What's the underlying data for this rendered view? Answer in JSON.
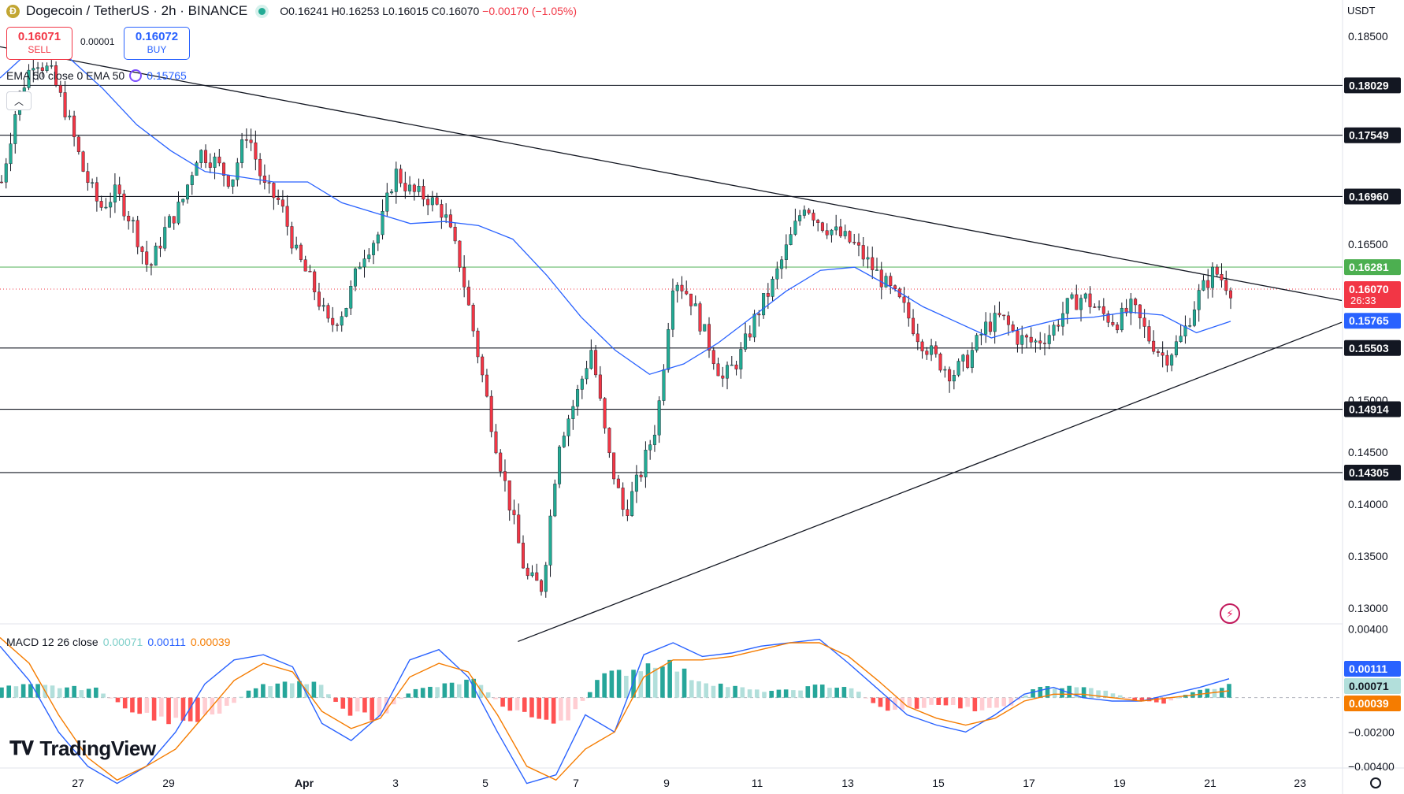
{
  "header": {
    "symbol": "Dogecoin / TetherUS · 2h · BINANCE",
    "coin_icon": "dogecoin-coin-icon",
    "open": "O0.16241",
    "high": "H0.16253",
    "low": "L0.16015",
    "close": "C0.16070",
    "change": "−0.00170 (−1.05%)"
  },
  "trade": {
    "sell_price": "0.16071",
    "sell_label": "SELL",
    "buy_price": "0.16072",
    "buy_label": "BUY",
    "spread": "0.00001"
  },
  "ema": {
    "label": "EMA 50 close 0 EMA 50",
    "value": "0.15765"
  },
  "macd": {
    "label": "MACD 12 26 close",
    "hist": "0.00071",
    "macd": "0.00111",
    "signal": "0.00039"
  },
  "currency": "USDT",
  "branding": {
    "logo_text": "TradingView"
  },
  "colors": {
    "up": "#22ab94",
    "down": "#f23645",
    "ema": "#2962ff",
    "signal": "#f57c00",
    "level_green": "#4caf50"
  },
  "chart_data": {
    "type": "candlestick",
    "price_axis_ticks": [
      "0.18500",
      "0.16500",
      "0.15000",
      "0.14500",
      "0.14000",
      "0.13500",
      "0.13000"
    ],
    "x_ticks": [
      "27",
      "29",
      "Apr",
      "3",
      "5",
      "7",
      "9",
      "11",
      "13",
      "15",
      "17",
      "19",
      "21",
      "23"
    ],
    "ylim": [
      0.1285,
      0.1885
    ],
    "horizontal_levels": [
      {
        "value": 0.18029,
        "label": "0.18029"
      },
      {
        "value": 0.17549,
        "label": "0.17549"
      },
      {
        "value": 0.1696,
        "label": "0.16960"
      },
      {
        "value": 0.16281,
        "label": "0.16281",
        "color": "green"
      },
      {
        "value": 0.15503,
        "label": "0.15503"
      },
      {
        "value": 0.14914,
        "label": "0.14914"
      },
      {
        "value": 0.14305,
        "label": "0.14305"
      }
    ],
    "current_price": {
      "value": 0.1607,
      "label": "0.16070",
      "countdown": "26:33"
    },
    "ema_value": {
      "value": 0.15765,
      "label": "0.15765"
    },
    "price_path": [
      0.171,
      0.179,
      0.183,
      0.1815,
      0.1775,
      0.172,
      0.1685,
      0.17,
      0.167,
      0.1625,
      0.1665,
      0.169,
      0.174,
      0.173,
      0.171,
      0.176,
      0.1705,
      0.169,
      0.164,
      0.161,
      0.157,
      0.159,
      0.164,
      0.166,
      0.172,
      0.17,
      0.1695,
      0.168,
      0.163,
      0.155,
      0.147,
      0.14,
      0.133,
      0.132,
      0.146,
      0.15,
      0.155,
      0.145,
      0.139,
      0.143,
      0.148,
      0.162,
      0.16,
      0.156,
      0.152,
      0.154,
      0.158,
      0.161,
      0.165,
      0.169,
      0.167,
      0.166,
      0.165,
      0.163,
      0.161,
      0.159,
      0.156,
      0.154,
      0.1525,
      0.154,
      0.157,
      0.158,
      0.156,
      0.1555,
      0.1565,
      0.159,
      0.16,
      0.1585,
      0.1575,
      0.159,
      0.156,
      0.154,
      0.156,
      0.16,
      0.1625,
      0.1607
    ],
    "ema_path": [
      0.181,
      0.184,
      0.183,
      0.18,
      0.1765,
      0.174,
      0.172,
      0.1715,
      0.171,
      0.171,
      0.169,
      0.168,
      0.167,
      0.1672,
      0.1668,
      0.1655,
      0.162,
      0.158,
      0.1548,
      0.1525,
      0.1535,
      0.1555,
      0.158,
      0.1605,
      0.1625,
      0.1628,
      0.161,
      0.159,
      0.1575,
      0.156,
      0.157,
      0.1578,
      0.158,
      0.1585,
      0.1582,
      0.1565,
      0.1576
    ],
    "resistance_trendline": [
      [
        0.0,
        0.184
      ],
      [
        0.276,
        0.1803
      ],
      [
        0.636,
        0.1698
      ],
      [
        1.0,
        0.1596
      ]
    ],
    "support_trendline": [
      [
        0.386,
        0.1268
      ],
      [
        0.418,
        0.1303
      ],
      [
        1.0,
        0.1575
      ]
    ],
    "macd_axis_ticks": [
      "0.00400",
      "−0.00200",
      "−0.00400"
    ],
    "macd_ylim": [
      -0.0041,
      0.0043
    ],
    "macd_line": [
      0.003,
      0.001,
      -0.002,
      -0.004,
      -0.005,
      -0.004,
      -0.002,
      0.0008,
      0.0022,
      0.0025,
      0.0018,
      -0.0015,
      -0.0025,
      -0.001,
      0.0022,
      0.0028,
      0.0012,
      -0.002,
      -0.005,
      -0.0045,
      -0.001,
      -0.002,
      0.0025,
      0.0032,
      0.0024,
      0.0026,
      0.003,
      0.0032,
      0.0034,
      0.002,
      0.0005,
      -0.001,
      -0.0016,
      -0.002,
      -0.001,
      0.0002,
      0.0006,
      0.0,
      -0.0002,
      -0.0002,
      0.0002,
      0.0006,
      0.0011
    ],
    "signal_line": [
      0.0035,
      0.002,
      -0.001,
      -0.0035,
      -0.0048,
      -0.004,
      -0.003,
      -0.001,
      0.001,
      0.002,
      0.0015,
      -0.0008,
      -0.0018,
      -0.0012,
      0.0012,
      0.002,
      0.0015,
      -0.001,
      -0.004,
      -0.0048,
      -0.003,
      -0.002,
      0.0012,
      0.0022,
      0.0022,
      0.0024,
      0.0028,
      0.0032,
      0.0032,
      0.0024,
      0.001,
      -0.0005,
      -0.0012,
      -0.0016,
      -0.0012,
      -0.0002,
      0.0002,
      0.0002,
      0.0,
      -0.0002,
      0.0,
      0.0002,
      0.0004
    ],
    "macd_histogram": [
      0.0006,
      0.0007,
      0.0006,
      0.0005,
      -0.0007,
      -0.0012,
      -0.0016,
      -0.0008,
      0.0006,
      0.0008,
      0.0009,
      -0.0009,
      -0.0012,
      0.0004,
      0.0007,
      0.001,
      -0.0006,
      -0.0012,
      -0.0014,
      0.0012,
      0.0016,
      0.0022,
      0.0011,
      0.0007,
      0.0004,
      0.0004,
      0.0007,
      0.0006,
      -0.0007,
      -0.0006,
      -0.0004,
      -0.0007,
      -0.0005,
      0.0007,
      0.0006,
      0.0005,
      -0.0002,
      -0.0003,
      0.0005,
      0.0007
    ],
    "macd_value_tags": [
      {
        "value": 0.00111,
        "label": "0.00111",
        "color": "#2962ff"
      },
      {
        "value": 0.00071,
        "label": "0.00071",
        "color": "#b2dfdb"
      },
      {
        "value": 0.00039,
        "label": "0.00039",
        "color": "#f57c00"
      }
    ]
  }
}
